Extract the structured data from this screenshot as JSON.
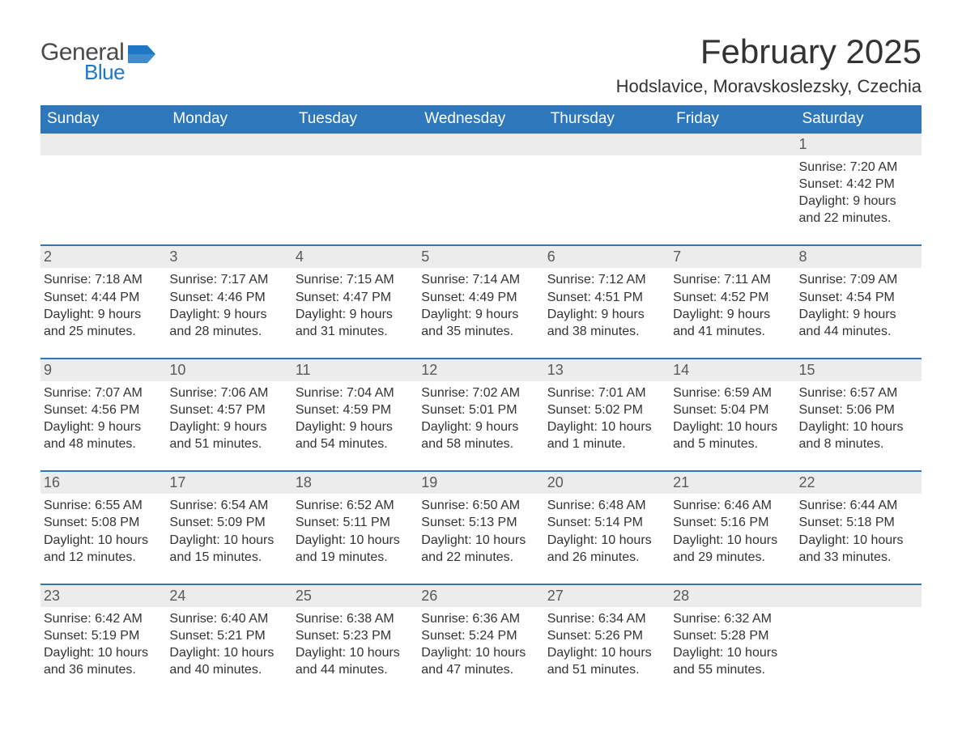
{
  "logo": {
    "general": "General",
    "blue": "Blue",
    "flag_color": "#1f77c3"
  },
  "title": "February 2025",
  "location": "Hodslavice, Moravskoslezsky, Czechia",
  "colors": {
    "header_bg": "#2e77bb",
    "header_text": "#ffffff",
    "daynum_bg": "#ececec",
    "text": "#333333",
    "rule": "#2e77bb"
  },
  "fonts": {
    "title_size_pt": 42,
    "location_size_pt": 22,
    "dow_size_pt": 19,
    "daynum_size_pt": 18,
    "body_size_pt": 16
  },
  "days_of_week": [
    "Sunday",
    "Monday",
    "Tuesday",
    "Wednesday",
    "Thursday",
    "Friday",
    "Saturday"
  ],
  "weeks": [
    [
      null,
      null,
      null,
      null,
      null,
      null,
      {
        "n": "1",
        "sunrise": "Sunrise: 7:20 AM",
        "sunset": "Sunset: 4:42 PM",
        "day1": "Daylight: 9 hours",
        "day2": "and 22 minutes."
      }
    ],
    [
      {
        "n": "2",
        "sunrise": "Sunrise: 7:18 AM",
        "sunset": "Sunset: 4:44 PM",
        "day1": "Daylight: 9 hours",
        "day2": "and 25 minutes."
      },
      {
        "n": "3",
        "sunrise": "Sunrise: 7:17 AM",
        "sunset": "Sunset: 4:46 PM",
        "day1": "Daylight: 9 hours",
        "day2": "and 28 minutes."
      },
      {
        "n": "4",
        "sunrise": "Sunrise: 7:15 AM",
        "sunset": "Sunset: 4:47 PM",
        "day1": "Daylight: 9 hours",
        "day2": "and 31 minutes."
      },
      {
        "n": "5",
        "sunrise": "Sunrise: 7:14 AM",
        "sunset": "Sunset: 4:49 PM",
        "day1": "Daylight: 9 hours",
        "day2": "and 35 minutes."
      },
      {
        "n": "6",
        "sunrise": "Sunrise: 7:12 AM",
        "sunset": "Sunset: 4:51 PM",
        "day1": "Daylight: 9 hours",
        "day2": "and 38 minutes."
      },
      {
        "n": "7",
        "sunrise": "Sunrise: 7:11 AM",
        "sunset": "Sunset: 4:52 PM",
        "day1": "Daylight: 9 hours",
        "day2": "and 41 minutes."
      },
      {
        "n": "8",
        "sunrise": "Sunrise: 7:09 AM",
        "sunset": "Sunset: 4:54 PM",
        "day1": "Daylight: 9 hours",
        "day2": "and 44 minutes."
      }
    ],
    [
      {
        "n": "9",
        "sunrise": "Sunrise: 7:07 AM",
        "sunset": "Sunset: 4:56 PM",
        "day1": "Daylight: 9 hours",
        "day2": "and 48 minutes."
      },
      {
        "n": "10",
        "sunrise": "Sunrise: 7:06 AM",
        "sunset": "Sunset: 4:57 PM",
        "day1": "Daylight: 9 hours",
        "day2": "and 51 minutes."
      },
      {
        "n": "11",
        "sunrise": "Sunrise: 7:04 AM",
        "sunset": "Sunset: 4:59 PM",
        "day1": "Daylight: 9 hours",
        "day2": "and 54 minutes."
      },
      {
        "n": "12",
        "sunrise": "Sunrise: 7:02 AM",
        "sunset": "Sunset: 5:01 PM",
        "day1": "Daylight: 9 hours",
        "day2": "and 58 minutes."
      },
      {
        "n": "13",
        "sunrise": "Sunrise: 7:01 AM",
        "sunset": "Sunset: 5:02 PM",
        "day1": "Daylight: 10 hours",
        "day2": "and 1 minute."
      },
      {
        "n": "14",
        "sunrise": "Sunrise: 6:59 AM",
        "sunset": "Sunset: 5:04 PM",
        "day1": "Daylight: 10 hours",
        "day2": "and 5 minutes."
      },
      {
        "n": "15",
        "sunrise": "Sunrise: 6:57 AM",
        "sunset": "Sunset: 5:06 PM",
        "day1": "Daylight: 10 hours",
        "day2": "and 8 minutes."
      }
    ],
    [
      {
        "n": "16",
        "sunrise": "Sunrise: 6:55 AM",
        "sunset": "Sunset: 5:08 PM",
        "day1": "Daylight: 10 hours",
        "day2": "and 12 minutes."
      },
      {
        "n": "17",
        "sunrise": "Sunrise: 6:54 AM",
        "sunset": "Sunset: 5:09 PM",
        "day1": "Daylight: 10 hours",
        "day2": "and 15 minutes."
      },
      {
        "n": "18",
        "sunrise": "Sunrise: 6:52 AM",
        "sunset": "Sunset: 5:11 PM",
        "day1": "Daylight: 10 hours",
        "day2": "and 19 minutes."
      },
      {
        "n": "19",
        "sunrise": "Sunrise: 6:50 AM",
        "sunset": "Sunset: 5:13 PM",
        "day1": "Daylight: 10 hours",
        "day2": "and 22 minutes."
      },
      {
        "n": "20",
        "sunrise": "Sunrise: 6:48 AM",
        "sunset": "Sunset: 5:14 PM",
        "day1": "Daylight: 10 hours",
        "day2": "and 26 minutes."
      },
      {
        "n": "21",
        "sunrise": "Sunrise: 6:46 AM",
        "sunset": "Sunset: 5:16 PM",
        "day1": "Daylight: 10 hours",
        "day2": "and 29 minutes."
      },
      {
        "n": "22",
        "sunrise": "Sunrise: 6:44 AM",
        "sunset": "Sunset: 5:18 PM",
        "day1": "Daylight: 10 hours",
        "day2": "and 33 minutes."
      }
    ],
    [
      {
        "n": "23",
        "sunrise": "Sunrise: 6:42 AM",
        "sunset": "Sunset: 5:19 PM",
        "day1": "Daylight: 10 hours",
        "day2": "and 36 minutes."
      },
      {
        "n": "24",
        "sunrise": "Sunrise: 6:40 AM",
        "sunset": "Sunset: 5:21 PM",
        "day1": "Daylight: 10 hours",
        "day2": "and 40 minutes."
      },
      {
        "n": "25",
        "sunrise": "Sunrise: 6:38 AM",
        "sunset": "Sunset: 5:23 PM",
        "day1": "Daylight: 10 hours",
        "day2": "and 44 minutes."
      },
      {
        "n": "26",
        "sunrise": "Sunrise: 6:36 AM",
        "sunset": "Sunset: 5:24 PM",
        "day1": "Daylight: 10 hours",
        "day2": "and 47 minutes."
      },
      {
        "n": "27",
        "sunrise": "Sunrise: 6:34 AM",
        "sunset": "Sunset: 5:26 PM",
        "day1": "Daylight: 10 hours",
        "day2": "and 51 minutes."
      },
      {
        "n": "28",
        "sunrise": "Sunrise: 6:32 AM",
        "sunset": "Sunset: 5:28 PM",
        "day1": "Daylight: 10 hours",
        "day2": "and 55 minutes."
      },
      null
    ]
  ]
}
